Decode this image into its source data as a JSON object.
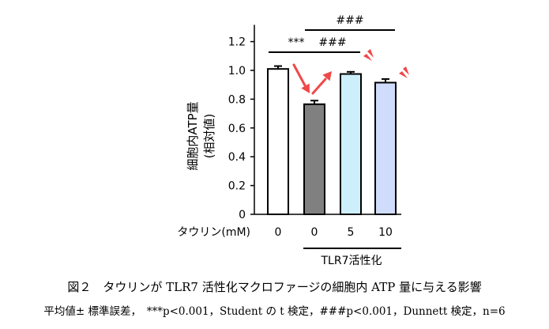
{
  "chart_data": {
    "type": "bar",
    "ylabel": "細胞内ATP量 (相対値)",
    "ylabel_line1": "細胞内ATP量",
    "ylabel_line2": "(相対値)",
    "ylim": [
      0,
      1.3
    ],
    "yticks": [
      0,
      0.2,
      0.4,
      0.6,
      0.8,
      1.0,
      1.2
    ],
    "ytick_labels": [
      "0",
      "0.2",
      "0.4",
      "0.6",
      "0.8",
      "1.0",
      "1.2"
    ],
    "xlabel": "タウリン(mM)",
    "categories": [
      "0",
      "0",
      "5",
      "10"
    ],
    "values": [
      1.01,
      0.765,
      0.975,
      0.915
    ],
    "errors": [
      0.02,
      0.025,
      0.015,
      0.025
    ],
    "bar_colors": [
      "#ffffff",
      "#808080",
      "#cdeffb",
      "#cfdcfb"
    ],
    "treatment_group_label": "TLR7活性化",
    "treatment_group_range": [
      1,
      3
    ],
    "significance": [
      {
        "from": 0,
        "to": 1,
        "label": "***"
      },
      {
        "from": 1,
        "to": 2,
        "label": "###"
      },
      {
        "from": 1,
        "to": 3,
        "label": "###"
      }
    ],
    "arrow_color": "#f04848"
  },
  "caption": {
    "title": "図２　タウリンが TLR7 活性化マクロファージの細胞内 ATP 量に与える影響",
    "note": "平均値± 標準誤差，　***p<0.001，Student の t 検定，###p<0.001，Dunnett 検定，n=6"
  }
}
